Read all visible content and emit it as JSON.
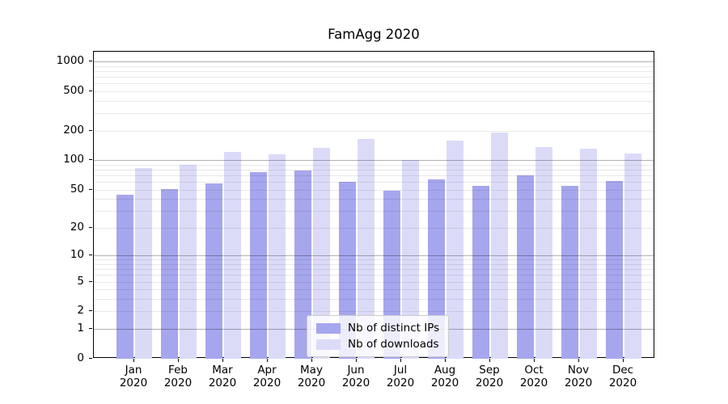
{
  "chart_data": {
    "type": "bar",
    "title": "FamAgg 2020",
    "categories": [
      "Jan 2020",
      "Feb 2020",
      "Mar 2020",
      "Apr 2020",
      "May 2020",
      "Jun 2020",
      "Jul 2020",
      "Aug 2020",
      "Sep 2020",
      "Oct 2020",
      "Nov 2020",
      "Dec 2020"
    ],
    "series": [
      {
        "name": "Nb of distinct IPs",
        "color": "#a6a6ee",
        "values": [
          44,
          51,
          58,
          76,
          78,
          60,
          49,
          63,
          55,
          70,
          55,
          61
        ]
      },
      {
        "name": "Nb of downloads",
        "color": "#dbdbf8",
        "values": [
          83,
          90,
          122,
          115,
          134,
          165,
          100,
          157,
          190,
          136,
          130,
          117
        ]
      }
    ],
    "y_ticks": [
      0,
      1,
      2,
      5,
      10,
      20,
      50,
      100,
      200,
      500,
      1000
    ],
    "yscale": "log1p",
    "ylim": [
      0,
      1250
    ],
    "xlabel": "",
    "ylabel": "",
    "grid": "horizontal, major at powers of 10, minor at 2-9 multiples",
    "legend_position": "inside lower-center"
  }
}
